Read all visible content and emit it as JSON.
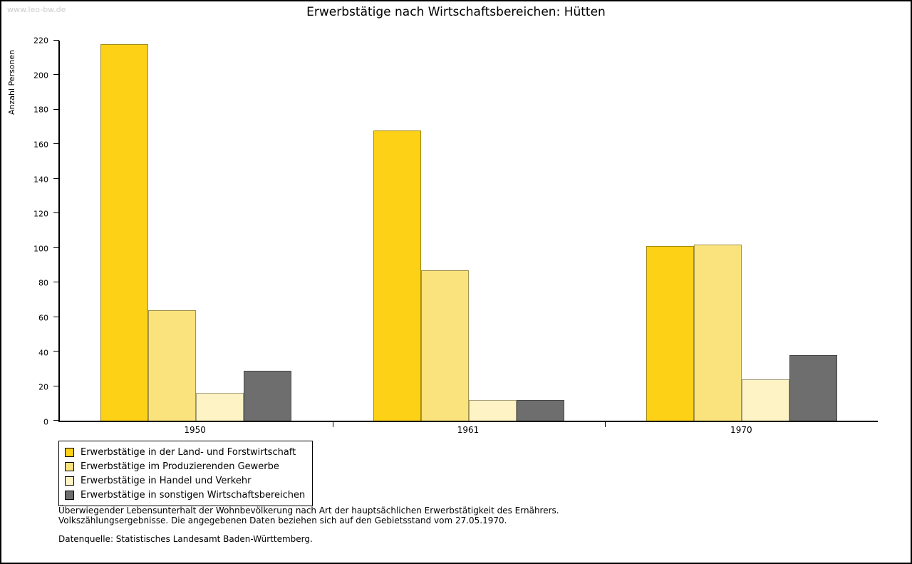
{
  "watermark": "www.leo-bw.de",
  "chart_data": {
    "type": "bar",
    "title": "Erwerbstätige nach Wirtschaftsbereichen: Hütten",
    "xlabel": "",
    "ylabel": "Anzahl Personen",
    "ylim": [
      0,
      220
    ],
    "ytick_step": 20,
    "grid": false,
    "legend_position": "bottom-left",
    "categories": [
      "1950",
      "1961",
      "1970"
    ],
    "series": [
      {
        "name": "Erwerbstätige in der Land- und Forstwirtschaft",
        "color": "#fcd116",
        "values": [
          218,
          168,
          101
        ]
      },
      {
        "name": "Erwerbstätige im Produzierenden Gewerbe",
        "color": "#fae27c",
        "values": [
          64,
          87,
          102
        ]
      },
      {
        "name": "Erwerbstätige in Handel und Verkehr",
        "color": "#fdf3c4",
        "values": [
          16,
          12,
          24
        ]
      },
      {
        "name": "Erwerbstätige in sonstigen Wirtschaftsbereichen",
        "color": "#6e6e6e",
        "values": [
          29,
          12,
          38
        ]
      }
    ]
  },
  "footnotes": {
    "line1": "Überwiegender Lebensunterhalt der Wohnbevölkerung nach Art der hauptsächlichen Erwerbstätigkeit des Ernährers.",
    "line2": "Volkszählungsergebnisse. Die angegebenen Daten beziehen sich auf den Gebietsstand vom 27.05.1970.",
    "source": "Datenquelle: Statistisches Landesamt Baden-Württemberg."
  }
}
